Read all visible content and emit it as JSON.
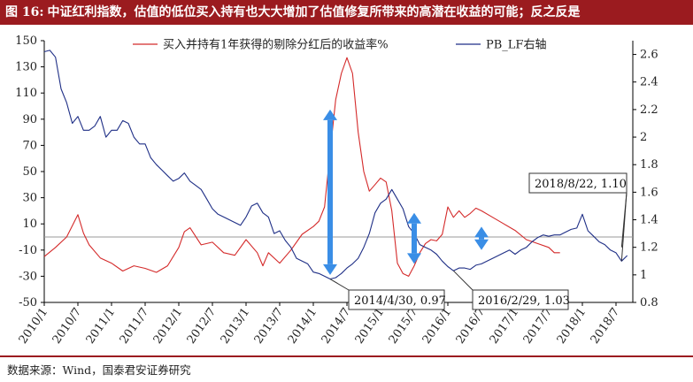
{
  "header": {
    "figure_number": "图 16:",
    "title": "中证红利指数，估值的低位买入持有也大大增加了估值修复所带来的高潜在收益的可能；反之反是"
  },
  "footer": {
    "source": "数据来源：Wind，国泰君安证券研究"
  },
  "colors": {
    "brand": "#9b1b1f",
    "series_return": "#d42a2a",
    "series_pb": "#1f2f86",
    "arrow": "#3a8ee6"
  },
  "chart_data": {
    "type": "line",
    "title": "中证红利指数，估值的低位买入持有也大大增加了估值修复所带来的高潜在收益的可能；反之反是",
    "x_tick_labels": [
      "2010/1",
      "2010/7",
      "2011/1",
      "2011/7",
      "2012/1",
      "2012/7",
      "2013/1",
      "2013/7",
      "2014/1",
      "2014/7",
      "2015/1",
      "2015/7",
      "2016/1",
      "2016/7",
      "2017/1",
      "2017/7",
      "2018/1",
      "2018/7"
    ],
    "x_range": [
      "2010/1",
      "2018/10"
    ],
    "y_left": {
      "range": [
        -50,
        150
      ],
      "ticks": [
        -50,
        -30,
        -10,
        10,
        30,
        50,
        70,
        90,
        110,
        130,
        150
      ]
    },
    "y_right": {
      "range": [
        0.8,
        2.7
      ],
      "ticks": [
        0.8,
        1.0,
        1.2,
        1.4,
        1.6,
        1.8,
        2.0,
        2.2,
        2.4,
        2.6
      ]
    },
    "grid": false,
    "legend_position": "top",
    "series": [
      {
        "name": "买入并持有1年获得的剔除分红后的收益率%",
        "axis": "left",
        "x": [
          "2010/1",
          "2010/3",
          "2010/5",
          "2010/7",
          "2010/8",
          "2010/9",
          "2010/11",
          "2011/1",
          "2011/3",
          "2011/5",
          "2011/7",
          "2011/9",
          "2011/11",
          "2012/1",
          "2012/2",
          "2012/3",
          "2012/5",
          "2012/7",
          "2012/9",
          "2012/11",
          "2013/1",
          "2013/3",
          "2013/4",
          "2013/5",
          "2013/7",
          "2013/9",
          "2013/11",
          "2014/1",
          "2014/2",
          "2014/3",
          "2014/4",
          "2014/5",
          "2014/6",
          "2014/7",
          "2014/8",
          "2014/9",
          "2014/10",
          "2014/11",
          "2014/12",
          "2015/1",
          "2015/2",
          "2015/3",
          "2015/4",
          "2015/5",
          "2015/6",
          "2015/7",
          "2015/8",
          "2015/9",
          "2015/10",
          "2015/11",
          "2015/12",
          "2016/1",
          "2016/2",
          "2016/3",
          "2016/4",
          "2016/5",
          "2016/6",
          "2016/7",
          "2016/9",
          "2016/11",
          "2017/1",
          "2017/3",
          "2017/5",
          "2017/7",
          "2017/8",
          "2017/9"
        ],
        "values": [
          -15,
          -8,
          0,
          17,
          3,
          -6,
          -16,
          -20,
          -26,
          -22,
          -24,
          -27,
          -22,
          -8,
          4,
          7,
          -6,
          -4,
          -12,
          -14,
          -2,
          -12,
          -22,
          -12,
          -20,
          -10,
          2,
          8,
          12,
          23,
          65,
          105,
          125,
          137,
          125,
          80,
          50,
          35,
          40,
          45,
          42,
          20,
          -20,
          -28,
          -30,
          -22,
          -12,
          -5,
          -2,
          -3,
          2,
          23,
          15,
          20,
          15,
          18,
          22,
          20,
          15,
          10,
          5,
          -2,
          -5,
          -8,
          -12,
          -12
        ]
      },
      {
        "name": "PB_LF右轴",
        "axis": "right",
        "x": [
          "2010/1",
          "2010/2",
          "2010/3",
          "2010/4",
          "2010/5",
          "2010/6",
          "2010/7",
          "2010/8",
          "2010/9",
          "2010/10",
          "2010/11",
          "2010/12",
          "2011/1",
          "2011/2",
          "2011/3",
          "2011/4",
          "2011/5",
          "2011/6",
          "2011/7",
          "2011/8",
          "2011/9",
          "2011/10",
          "2011/11",
          "2011/12",
          "2012/1",
          "2012/2",
          "2012/3",
          "2012/4",
          "2012/5",
          "2012/6",
          "2012/7",
          "2012/8",
          "2012/9",
          "2012/10",
          "2012/11",
          "2012/12",
          "2013/1",
          "2013/2",
          "2013/3",
          "2013/4",
          "2013/5",
          "2013/6",
          "2013/7",
          "2013/8",
          "2013/9",
          "2013/10",
          "2013/11",
          "2013/12",
          "2014/1",
          "2014/2",
          "2014/3",
          "2014/4",
          "2014/5",
          "2014/6",
          "2014/7",
          "2014/8",
          "2014/9",
          "2014/10",
          "2014/11",
          "2014/12",
          "2015/1",
          "2015/2",
          "2015/3",
          "2015/4",
          "2015/5",
          "2015/6",
          "2015/7",
          "2015/8",
          "2015/9",
          "2015/10",
          "2015/11",
          "2015/12",
          "2016/1",
          "2016/2",
          "2016/3",
          "2016/4",
          "2016/5",
          "2016/6",
          "2016/7",
          "2016/8",
          "2016/9",
          "2016/10",
          "2016/11",
          "2016/12",
          "2017/1",
          "2017/2",
          "2017/3",
          "2017/4",
          "2017/5",
          "2017/6",
          "2017/7",
          "2017/8",
          "2017/9",
          "2017/10",
          "2017/11",
          "2017/12",
          "2018/1",
          "2018/2",
          "2018/3",
          "2018/4",
          "2018/5",
          "2018/6",
          "2018/7",
          "2018/8",
          "2018/9"
        ],
        "values": [
          2.62,
          2.63,
          2.58,
          2.35,
          2.25,
          2.1,
          2.15,
          2.05,
          2.05,
          2.08,
          2.15,
          2.0,
          2.05,
          2.05,
          2.12,
          2.1,
          2.0,
          1.95,
          1.95,
          1.85,
          1.8,
          1.76,
          1.72,
          1.68,
          1.7,
          1.74,
          1.68,
          1.65,
          1.62,
          1.55,
          1.48,
          1.44,
          1.42,
          1.4,
          1.38,
          1.36,
          1.42,
          1.5,
          1.52,
          1.45,
          1.42,
          1.3,
          1.32,
          1.25,
          1.2,
          1.12,
          1.1,
          1.08,
          1.02,
          1.01,
          0.99,
          0.97,
          0.98,
          1.01,
          1.05,
          1.08,
          1.12,
          1.2,
          1.3,
          1.45,
          1.52,
          1.55,
          1.62,
          1.55,
          1.48,
          1.35,
          1.3,
          1.22,
          1.2,
          1.18,
          1.15,
          1.1,
          1.06,
          1.03,
          1.05,
          1.05,
          1.04,
          1.07,
          1.08,
          1.1,
          1.12,
          1.14,
          1.16,
          1.18,
          1.15,
          1.18,
          1.2,
          1.24,
          1.27,
          1.29,
          1.28,
          1.29,
          1.29,
          1.31,
          1.33,
          1.34,
          1.44,
          1.32,
          1.28,
          1.24,
          1.22,
          1.18,
          1.16,
          1.1,
          1.14
        ]
      }
    ],
    "annotations": [
      {
        "label": "2014/4/30,  0.97",
        "point": {
          "x": "2014/4",
          "y": 0.97,
          "axis": "right"
        }
      },
      {
        "label": "2016/2/29,  1.03",
        "point": {
          "x": "2016/2",
          "y": 1.03,
          "axis": "right"
        }
      },
      {
        "label": "2018/8/22,  1.10",
        "point": {
          "x": "2018/8",
          "y": 1.1,
          "axis": "right"
        }
      }
    ],
    "arrows": [
      {
        "x": "2014/4",
        "from_right": 1.0,
        "to_right": 2.2,
        "direction": "double"
      },
      {
        "x": "2015/7",
        "from_right": 1.08,
        "to_right": 1.45,
        "direction": "double"
      },
      {
        "x": "2016/7",
        "from_right": 1.18,
        "to_right": 1.35,
        "direction": "double"
      }
    ]
  }
}
